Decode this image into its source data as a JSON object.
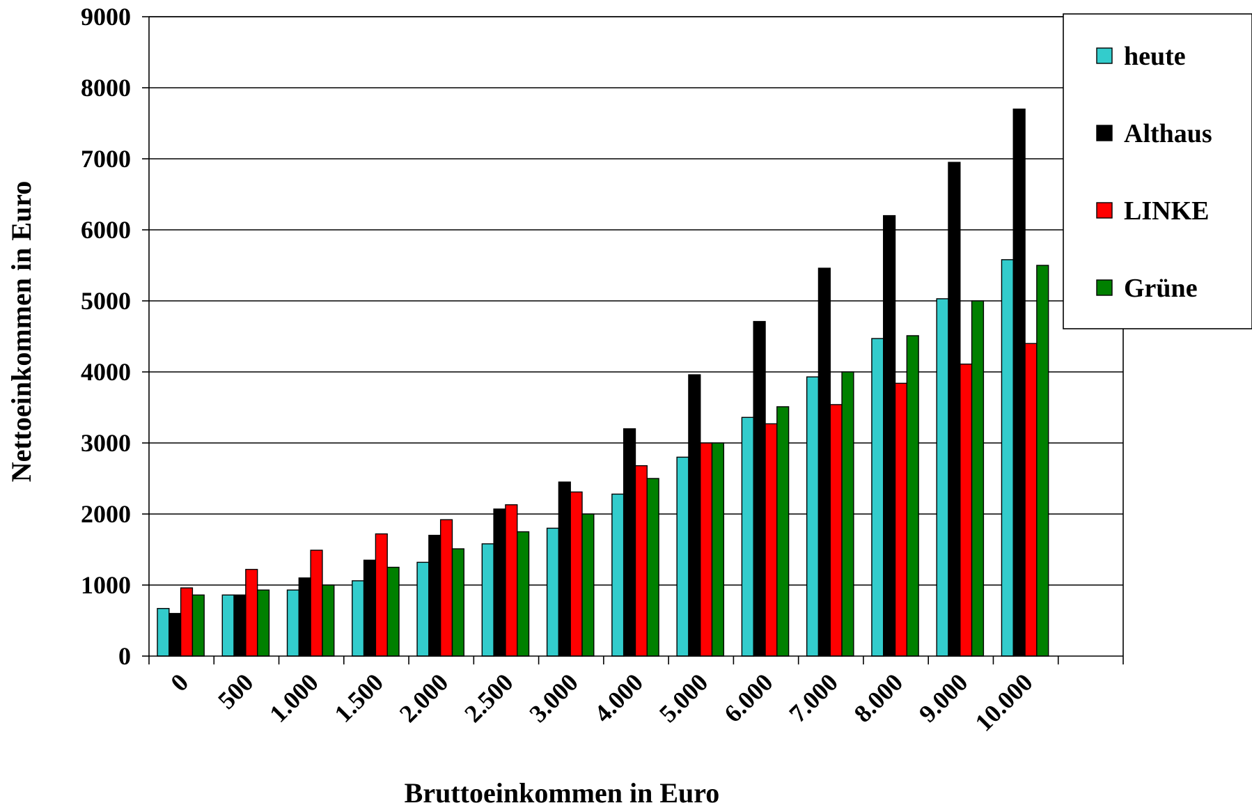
{
  "chart_data": {
    "type": "bar",
    "title": "",
    "xlabel": "Bruttoeinkommen in Euro",
    "ylabel": "Nettoeinkommen in Euro",
    "categories": [
      "0",
      "500",
      "1.000",
      "1.500",
      "2.000",
      "2.500",
      "3.000",
      "4.000",
      "5.000",
      "6.000",
      "7.000",
      "8.000",
      "9.000",
      "10.000"
    ],
    "ylim": [
      0,
      9000
    ],
    "yticks": [
      "0",
      "1000",
      "2000",
      "3000",
      "4000",
      "5000",
      "6000",
      "7000",
      "8000",
      "9000"
    ],
    "grid": true,
    "legend_position": "top-right",
    "series": [
      {
        "name": "heute",
        "color": "#33cccc",
        "values": [
          670,
          860,
          930,
          1060,
          1320,
          1580,
          1800,
          2280,
          2800,
          3360,
          3930,
          4470,
          5030,
          5580
        ]
      },
      {
        "name": "Althaus",
        "color": "#000000",
        "values": [
          600,
          860,
          1100,
          1350,
          1700,
          2070,
          2450,
          3200,
          3960,
          4710,
          5460,
          6200,
          6950,
          7700
        ]
      },
      {
        "name": "LINKE",
        "color": "#ff0000",
        "values": [
          960,
          1220,
          1490,
          1720,
          1920,
          2130,
          2310,
          2680,
          3000,
          3270,
          3540,
          3840,
          4110,
          4400
        ]
      },
      {
        "name": "Grüne",
        "color": "#008000",
        "values": [
          860,
          930,
          1000,
          1250,
          1510,
          1750,
          2000,
          2500,
          3000,
          3510,
          4000,
          4510,
          5000,
          5500
        ]
      }
    ]
  }
}
